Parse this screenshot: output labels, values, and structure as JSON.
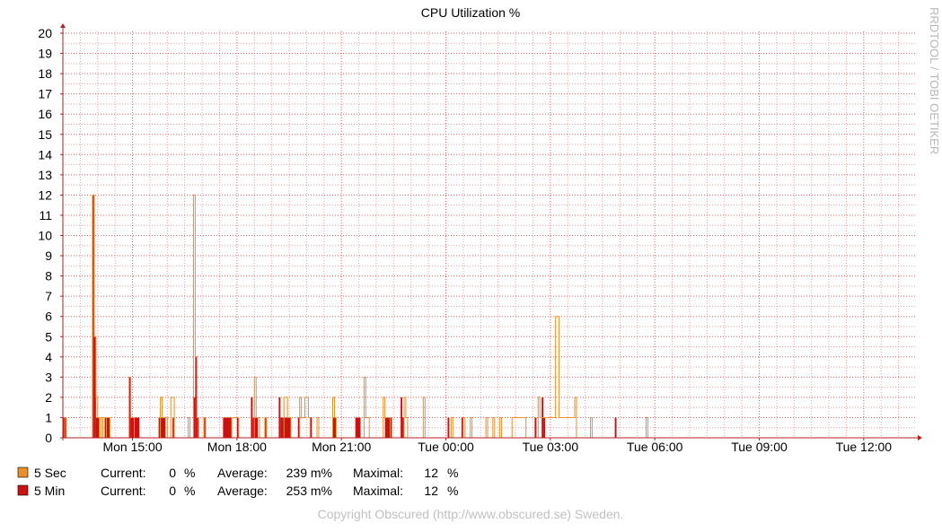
{
  "chart_data": {
    "type": "area",
    "title": "CPU Utilization %",
    "side_label": "RRDTOOL / TOBI OETIKER",
    "ylim": [
      0,
      20
    ],
    "y_ticks": [
      0,
      1,
      2,
      3,
      4,
      5,
      6,
      7,
      8,
      9,
      10,
      11,
      12,
      13,
      14,
      15,
      16,
      17,
      18,
      19,
      20
    ],
    "x_unit": "hours since Mon 13:00",
    "xlim": [
      0,
      24.5
    ],
    "x_ticks": [
      {
        "label": "Mon 15:00",
        "x": 2
      },
      {
        "label": "Mon 18:00",
        "x": 5
      },
      {
        "label": "Mon 21:00",
        "x": 8
      },
      {
        "label": "Tue 00:00",
        "x": 11
      },
      {
        "label": "Tue 03:00",
        "x": 14
      },
      {
        "label": "Tue 06:00",
        "x": 17
      },
      {
        "label": "Tue 09:00",
        "x": 20
      },
      {
        "label": "Tue 12:00",
        "x": 23
      }
    ],
    "colors": {
      "grid_major": "#e06060",
      "grid_minor": "#e8a0a0",
      "axis": "#b22222",
      "five_sec": "#e8902a",
      "five_min": "#cc1111"
    },
    "series": [
      {
        "name": "5 Sec",
        "render": "line",
        "color": "#e8902a",
        "points": [
          [
            0,
            0
          ],
          [
            0.05,
            1
          ],
          [
            0.1,
            0
          ],
          [
            0.85,
            12
          ],
          [
            0.9,
            5
          ],
          [
            0.95,
            2
          ],
          [
            1.0,
            1
          ],
          [
            1.05,
            0
          ],
          [
            1.1,
            1
          ],
          [
            1.15,
            0
          ],
          [
            1.25,
            1
          ],
          [
            1.35,
            0
          ],
          [
            1.9,
            3
          ],
          [
            1.95,
            1
          ],
          [
            2.05,
            0
          ],
          [
            2.8,
            2
          ],
          [
            2.85,
            1
          ],
          [
            3.0,
            0
          ],
          [
            3.1,
            2
          ],
          [
            3.2,
            0
          ],
          [
            3.6,
            1
          ],
          [
            3.65,
            0
          ],
          [
            3.75,
            12
          ],
          [
            3.8,
            4
          ],
          [
            3.85,
            1
          ],
          [
            3.9,
            0
          ],
          [
            4.05,
            1
          ],
          [
            4.1,
            0
          ],
          [
            4.85,
            1
          ],
          [
            5.05,
            0
          ],
          [
            5.5,
            3
          ],
          [
            5.55,
            1
          ],
          [
            5.65,
            0
          ],
          [
            5.8,
            1
          ],
          [
            5.85,
            0
          ],
          [
            6.35,
            2
          ],
          [
            6.45,
            1
          ],
          [
            6.55,
            0
          ],
          [
            6.8,
            2
          ],
          [
            6.85,
            1
          ],
          [
            6.95,
            2
          ],
          [
            7.05,
            1
          ],
          [
            7.1,
            0
          ],
          [
            7.3,
            1
          ],
          [
            7.35,
            0
          ],
          [
            7.75,
            2
          ],
          [
            7.8,
            1
          ],
          [
            7.85,
            0
          ],
          [
            8.65,
            3
          ],
          [
            8.7,
            1
          ],
          [
            8.8,
            0
          ],
          [
            9.2,
            2
          ],
          [
            9.25,
            1
          ],
          [
            9.4,
            0
          ],
          [
            9.8,
            2
          ],
          [
            9.85,
            1
          ],
          [
            9.9,
            0
          ],
          [
            10.35,
            2
          ],
          [
            10.4,
            0
          ],
          [
            11.15,
            1
          ],
          [
            11.2,
            0
          ],
          [
            11.5,
            1
          ],
          [
            11.55,
            0
          ],
          [
            11.7,
            1
          ],
          [
            11.75,
            0
          ],
          [
            12.15,
            1
          ],
          [
            12.2,
            0
          ],
          [
            12.35,
            1
          ],
          [
            12.4,
            0
          ],
          [
            12.55,
            1
          ],
          [
            12.6,
            0
          ],
          [
            12.9,
            1
          ],
          [
            13.3,
            0
          ],
          [
            13.65,
            2
          ],
          [
            13.7,
            1
          ],
          [
            13.9,
            1
          ],
          [
            14.15,
            6
          ],
          [
            14.25,
            1
          ],
          [
            14.7,
            2
          ],
          [
            14.75,
            0
          ],
          [
            15.15,
            1
          ],
          [
            15.2,
            0
          ],
          [
            16.75,
            1
          ],
          [
            16.8,
            0
          ]
        ]
      },
      {
        "name": "5 Min",
        "render": "area",
        "color": "#cc1111",
        "bars": [
          [
            0.0,
            0.1,
            1
          ],
          [
            0.85,
            0.9,
            12
          ],
          [
            0.9,
            0.95,
            5
          ],
          [
            0.95,
            1.05,
            1
          ],
          [
            1.2,
            1.35,
            1
          ],
          [
            1.9,
            1.95,
            3
          ],
          [
            1.95,
            2.2,
            1
          ],
          [
            2.75,
            2.95,
            1
          ],
          [
            3.15,
            3.2,
            1
          ],
          [
            3.75,
            3.8,
            2
          ],
          [
            3.8,
            3.85,
            4
          ],
          [
            3.85,
            3.9,
            1
          ],
          [
            4.05,
            4.1,
            1
          ],
          [
            4.6,
            4.85,
            1
          ],
          [
            5.0,
            5.05,
            1
          ],
          [
            5.4,
            5.45,
            2
          ],
          [
            5.45,
            5.6,
            1
          ],
          [
            5.8,
            5.85,
            1
          ],
          [
            6.2,
            6.25,
            2
          ],
          [
            6.25,
            6.55,
            1
          ],
          [
            6.75,
            6.8,
            1
          ],
          [
            7.1,
            7.15,
            1
          ],
          [
            7.75,
            7.85,
            1
          ],
          [
            8.4,
            8.55,
            1
          ],
          [
            9.25,
            9.45,
            1
          ],
          [
            9.7,
            9.75,
            2
          ],
          [
            9.75,
            9.8,
            1
          ],
          [
            11.05,
            11.1,
            1
          ],
          [
            11.45,
            11.5,
            1
          ],
          [
            13.55,
            13.6,
            1
          ],
          [
            13.75,
            13.8,
            2
          ],
          [
            13.8,
            13.85,
            1
          ],
          [
            15.85,
            15.9,
            1
          ]
        ]
      }
    ],
    "legend": [
      {
        "name": "5 Sec",
        "color": "#e8902a",
        "current_label": "Current:",
        "current": "0",
        "current_unit": "%",
        "average_label": "Average:",
        "average": "239 m%",
        "max_label": "Maximal:",
        "max": "12",
        "max_unit": "%"
      },
      {
        "name": "5 Min",
        "color": "#cc1111",
        "current_label": "Current:",
        "current": "0",
        "current_unit": "%",
        "average_label": "Average:",
        "average": "253 m%",
        "max_label": "Maximal:",
        "max": "12",
        "max_unit": "%"
      }
    ],
    "footer": "Copyright Obscured (http://www.obscured.se) Sweden."
  }
}
